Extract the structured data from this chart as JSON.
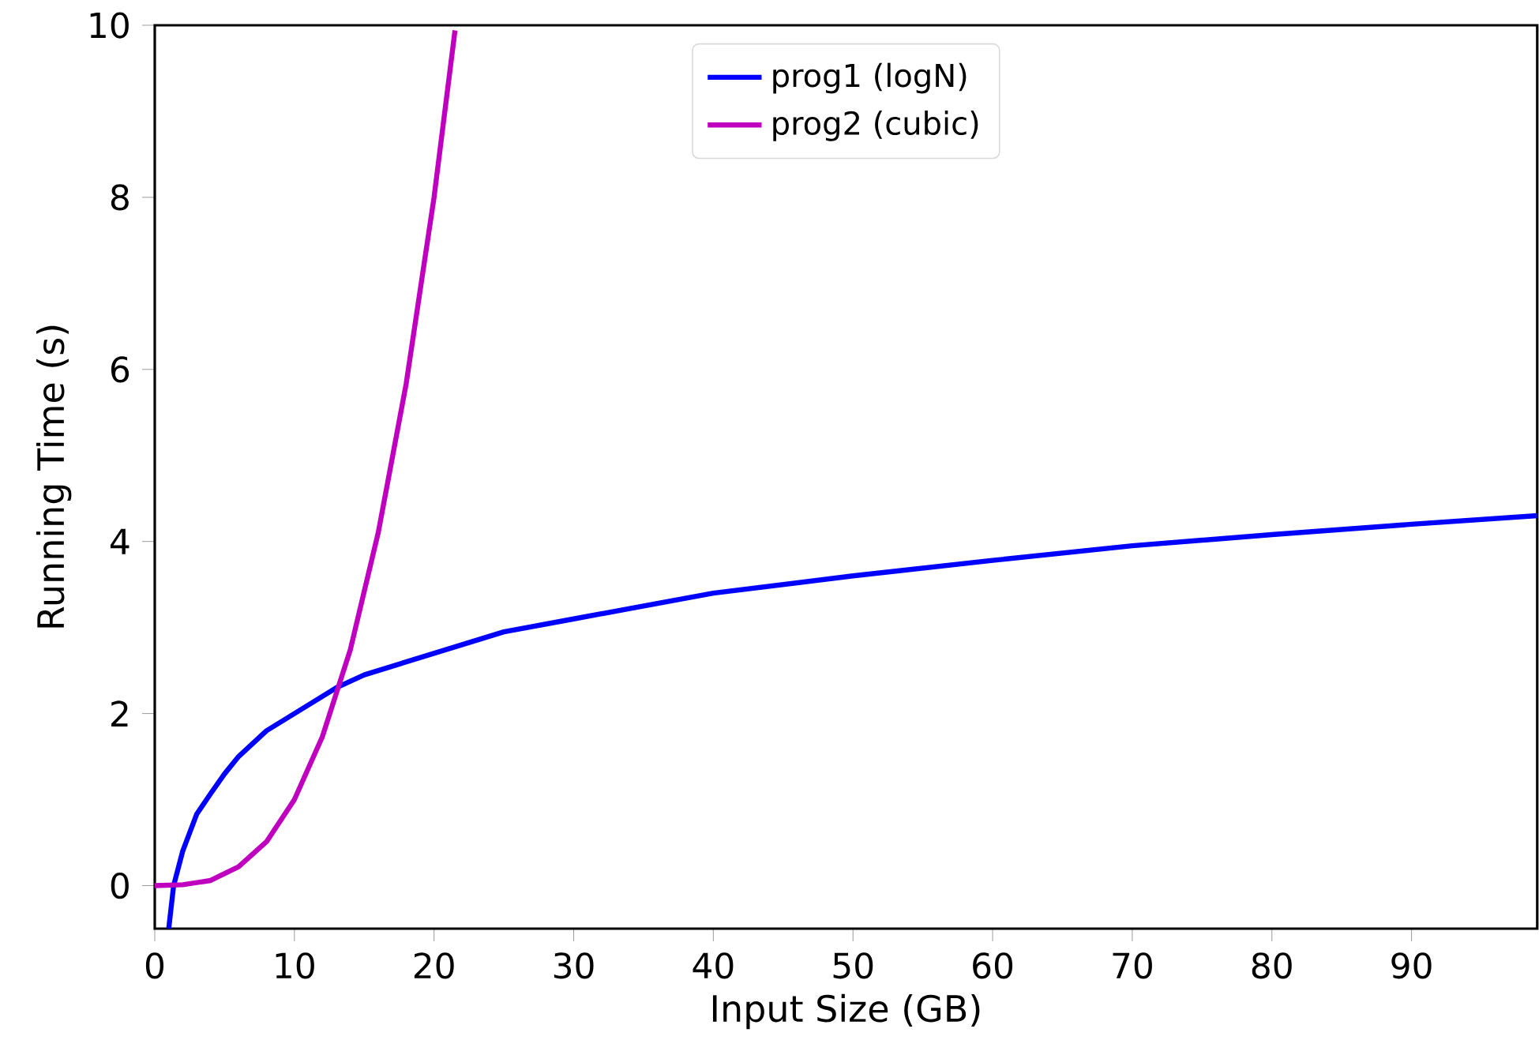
{
  "chart_data": {
    "type": "line",
    "xlabel": "Input Size (GB)",
    "ylabel": "Running Time (s)",
    "xlim": [
      0,
      99
    ],
    "ylim": [
      -0.5,
      10
    ],
    "xticks": [
      0,
      10,
      20,
      30,
      40,
      50,
      60,
      70,
      80,
      90
    ],
    "yticks": [
      0,
      2,
      4,
      6,
      8,
      10
    ],
    "legend": "top",
    "grid": false,
    "series": [
      {
        "name": "prog1 (logN)",
        "color": "#0000ff",
        "x": [
          1,
          1.35,
          2,
          3,
          4,
          5,
          6,
          8,
          10,
          13,
          15,
          20,
          25,
          30,
          40,
          50,
          60,
          70,
          80,
          90,
          99
        ],
        "values": [
          -0.5,
          0,
          0.4,
          0.83,
          1.07,
          1.3,
          1.5,
          1.8,
          2.0,
          2.3,
          2.45,
          2.7,
          2.95,
          3.1,
          3.4,
          3.6,
          3.78,
          3.95,
          4.08,
          4.2,
          4.3
        ]
      },
      {
        "name": "prog2 (cubic)",
        "color": "#bf00bf",
        "x": [
          0,
          2,
          4,
          6,
          8,
          10,
          12,
          14,
          16,
          18,
          20,
          21.5
        ],
        "values": [
          0,
          0.01,
          0.06,
          0.22,
          0.51,
          1.0,
          1.73,
          2.74,
          4.1,
          5.83,
          8.0,
          9.94
        ]
      }
    ]
  }
}
